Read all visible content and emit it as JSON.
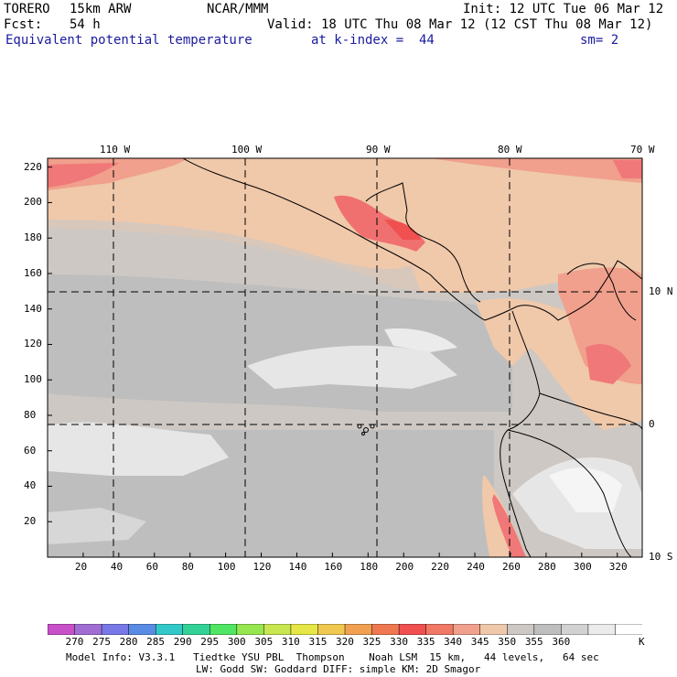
{
  "header": {
    "model": "TORERO",
    "resolution": "15km ARW",
    "org": "NCAR/MMM",
    "init": "Init: 12 UTC Tue 06 Mar 12",
    "fcst_label": "Fcst:",
    "fcst_value": "54 h",
    "valid": "Valid: 18 UTC Thu 08 Mar 12 (12 CST Thu 08 Mar 12)",
    "field": "Equivalent potential temperature",
    "level": "at k-index =  44",
    "smoothing": "sm= 2"
  },
  "map": {
    "lon_labels": [
      "110 W",
      "100 W",
      "90 W",
      "80 W",
      "70 W"
    ],
    "lat_labels": [
      "10 N",
      "0",
      "10 S"
    ],
    "y_ticks": [
      "220",
      "200",
      "180",
      "160",
      "140",
      "120",
      "100",
      "80",
      "60",
      "40",
      "20"
    ],
    "x_ticks": [
      "20",
      "40",
      "60",
      "80",
      "100",
      "120",
      "140",
      "160",
      "180",
      "200",
      "220",
      "240",
      "260",
      "280",
      "300",
      "320"
    ]
  },
  "colorbar": {
    "unit": "K",
    "labels": [
      "270",
      "275",
      "280",
      "285",
      "290",
      "295",
      "300",
      "305",
      "310",
      "315",
      "320",
      "325",
      "330",
      "335",
      "340",
      "345",
      "350",
      "355",
      "360"
    ],
    "colors": [
      "#c850c8",
      "#a06ed2",
      "#7878e6",
      "#5a8ce6",
      "#32c8c8",
      "#32d296",
      "#50e664",
      "#96e650",
      "#c8e650",
      "#e6e646",
      "#f0c850",
      "#f0a050",
      "#f07850",
      "#f05050",
      "#f07864",
      "#f0a08c",
      "#f0c8aa",
      "#cdc8c3",
      "#bebebe",
      "#d2d2d2",
      "#ebebeb",
      "#ffffff"
    ]
  },
  "footer": {
    "line1": "Model Info: V3.3.1   Tiedtke YSU PBL  Thompson    Noah LSM  15 km,   44 levels,   64 sec",
    "line2": "LW: Godd SW: Goddard DIFF: simple KM: 2D Smagor"
  }
}
